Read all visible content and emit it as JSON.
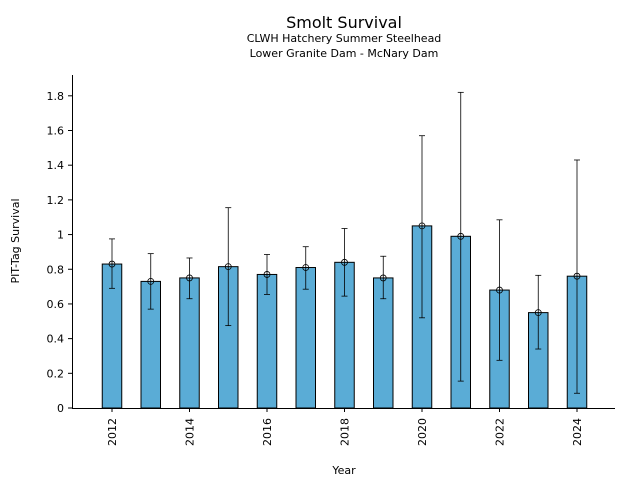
{
  "chart_data": {
    "type": "bar",
    "title": "Smolt Survival",
    "subtitle_lines": [
      "CLWH Hatchery Summer Steelhead",
      "Lower Granite Dam - McNary Dam"
    ],
    "xlabel": "Year",
    "ylabel": "PIT-Tag Survival",
    "x": [
      2012,
      2013,
      2014,
      2015,
      2016,
      2017,
      2018,
      2019,
      2020,
      2021,
      2022,
      2023,
      2024
    ],
    "values": [
      0.83,
      0.73,
      0.75,
      0.815,
      0.77,
      0.81,
      0.84,
      0.75,
      1.05,
      0.99,
      0.68,
      0.55,
      0.76
    ],
    "error_lower": [
      0.69,
      0.57,
      0.63,
      0.475,
      0.655,
      0.685,
      0.645,
      0.63,
      0.52,
      0.155,
      0.275,
      0.34,
      0.085
    ],
    "error_upper": [
      0.975,
      0.89,
      0.865,
      1.155,
      0.885,
      0.93,
      1.035,
      0.875,
      1.57,
      1.82,
      1.085,
      0.765,
      1.43
    ],
    "xticks": [
      "2012",
      "2014",
      "2016",
      "2018",
      "2020",
      "2022",
      "2024"
    ],
    "yticks": [
      "0",
      "0.2",
      "0.4",
      "0.6",
      "0.8",
      "1",
      "1.2",
      "1.4",
      "1.6",
      "1.8"
    ],
    "ylim": [
      0,
      1.92
    ],
    "bar_color": "#5aacd6",
    "grid": false,
    "legend": "none"
  }
}
